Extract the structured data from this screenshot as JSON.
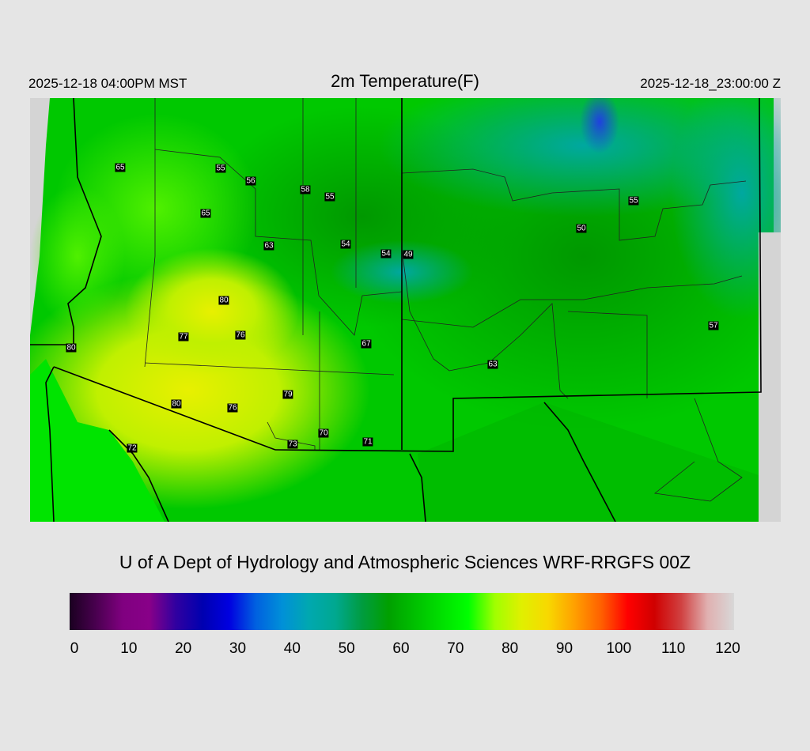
{
  "header": {
    "local_time": "2025-12-18 04:00PM MST",
    "title": "2m Temperature(F)",
    "valid_time": "2025-12-18_23:00:00 Z"
  },
  "map": {
    "stations": [
      "65",
      "55",
      "56",
      "58",
      "55",
      "65",
      "63",
      "54",
      "54",
      "49",
      "50",
      "55",
      "57",
      "80",
      "77",
      "76",
      "67",
      "63",
      "80",
      "79",
      "80",
      "76",
      "70",
      "73",
      "71",
      "72"
    ]
  },
  "credit": "U of A Dept of Hydrology and Atmospheric Sciences WRF-RRGFS 00Z",
  "colorbar": {
    "unit_range": [
      0,
      120
    ],
    "ticks": [
      "0",
      "10",
      "20",
      "30",
      "40",
      "50",
      "60",
      "70",
      "80",
      "90",
      "100",
      "110",
      "120"
    ],
    "colors": [
      "#1a0020",
      "#4a0050",
      "#800080",
      "#880088",
      "#3000a0",
      "#0000b0",
      "#0000e0",
      "#0060e0",
      "#0090d8",
      "#00a8b0",
      "#00a890",
      "#009c40",
      "#00a000",
      "#00c000",
      "#00e000",
      "#00ff00",
      "#a0ff00",
      "#e0f000",
      "#f8d800",
      "#ffa000",
      "#ff6000",
      "#ff0000",
      "#d00000",
      "#d04040",
      "#e0b0b0",
      "#d8d8d8"
    ]
  }
}
